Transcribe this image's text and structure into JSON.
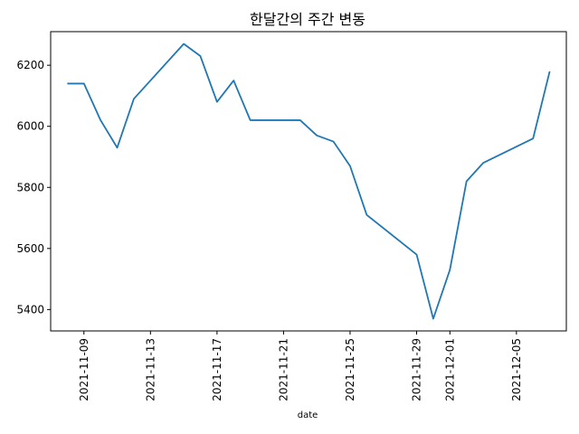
{
  "chart_data": {
    "type": "line",
    "title": "한달간의 주간 변동",
    "xlabel": "date",
    "ylabel": "",
    "x_ticks": [
      "2021-11-09",
      "2021-11-13",
      "2021-11-17",
      "2021-11-21",
      "2021-11-25",
      "2021-11-29",
      "2021-12-01",
      "2021-12-05"
    ],
    "y_ticks": [
      5400,
      5600,
      5800,
      6000,
      6200
    ],
    "xlim": [
      "2021-11-07",
      "2021-12-08"
    ],
    "ylim": [
      5330,
      6310
    ],
    "grid": false,
    "series": [
      {
        "color": "#1f77b4",
        "x": [
          "2021-11-08",
          "2021-11-09",
          "2021-11-10",
          "2021-11-11",
          "2021-11-12",
          "2021-11-15",
          "2021-11-16",
          "2021-11-17",
          "2021-11-18",
          "2021-11-19",
          "2021-11-22",
          "2021-11-23",
          "2021-11-24",
          "2021-11-25",
          "2021-11-26",
          "2021-11-29",
          "2021-11-30",
          "2021-12-01",
          "2021-12-02",
          "2021-12-03",
          "2021-12-06",
          "2021-12-07"
        ],
        "values": [
          6140,
          6140,
          6020,
          5930,
          6090,
          6270,
          6230,
          6080,
          6150,
          6020,
          6020,
          5970,
          5950,
          5870,
          5710,
          5580,
          5370,
          5530,
          5820,
          5880,
          5960,
          6180
        ]
      }
    ]
  }
}
